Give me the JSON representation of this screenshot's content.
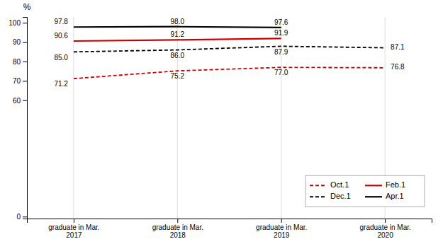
{
  "chart_data": {
    "type": "line",
    "y_label": "%",
    "categories": [
      "graduate in Mar.\n2017",
      "graduate in Mar.\n2018",
      "graduate in Mar.\n2019",
      "graduate in Mar.\n2020"
    ],
    "series": [
      {
        "name": "Oct.1",
        "color": "#cc0000",
        "line_style": "dashed",
        "values": [
          71.2,
          75.2,
          77.0,
          76.8
        ],
        "value_labels": [
          "71.2",
          "75.2",
          "77.0",
          "76.8"
        ]
      },
      {
        "name": "Dec.1",
        "color": "#000000",
        "line_style": "dashed",
        "values": [
          85.0,
          86.0,
          87.9,
          87.1
        ],
        "value_labels": [
          "85.0",
          "86.0",
          "87.9",
          "87.1"
        ]
      },
      {
        "name": "Feb.1",
        "color": "#cc0000",
        "line_style": "solid",
        "values": [
          90.6,
          91.2,
          91.9,
          null
        ],
        "value_labels": [
          "90.6",
          "91.2",
          "91.9",
          null
        ]
      },
      {
        "name": "Apr.1",
        "color": "#000000",
        "line_style": "solid",
        "values": [
          97.8,
          98.0,
          97.6,
          null
        ],
        "value_labels": [
          "97.8",
          "98.0",
          "97.6",
          null
        ]
      }
    ],
    "ylim": [
      -1,
      103
    ],
    "yticks": [
      0,
      60,
      70,
      80,
      90,
      100
    ],
    "grid": true,
    "legend": "lower right",
    "data_labels": true
  }
}
